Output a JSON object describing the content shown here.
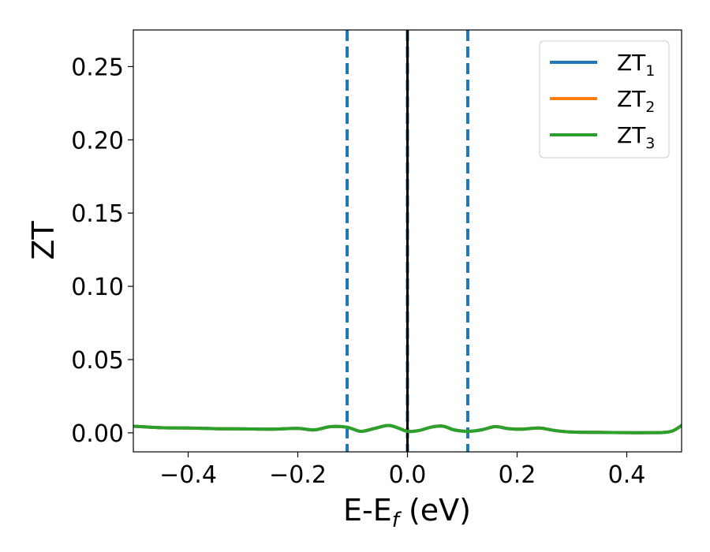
{
  "chart_data": {
    "type": "line",
    "title": "",
    "xlabel": {
      "main": "E-E",
      "sub": "f",
      "suffix": " (eV)"
    },
    "ylabel": "ZT",
    "xlim": [
      -0.5,
      0.5
    ],
    "ylim": [
      -0.013,
      0.275
    ],
    "xticks": [
      -0.4,
      -0.2,
      0.0,
      0.2,
      0.4
    ],
    "xtick_labels": [
      "−0.4",
      "−0.2",
      "0.0",
      "0.2",
      "0.4"
    ],
    "yticks": [
      0.0,
      0.05,
      0.1,
      0.15,
      0.2,
      0.25
    ],
    "ytick_labels": [
      "0.00",
      "0.05",
      "0.10",
      "0.15",
      "0.20",
      "0.25"
    ],
    "grid": false,
    "legend_position": "top-right",
    "series": [
      {
        "name": {
          "main": "ZT",
          "sub": "1"
        },
        "color": "#1f77b4",
        "x": [
          -0.5,
          -0.45,
          -0.4,
          -0.35,
          -0.3,
          -0.25,
          -0.2,
          -0.17,
          -0.14,
          -0.11,
          -0.085,
          -0.06,
          -0.035,
          -0.015,
          0.0,
          0.02,
          0.045,
          0.065,
          0.085,
          0.11,
          0.135,
          0.16,
          0.185,
          0.21,
          0.24,
          0.27,
          0.3,
          0.35,
          0.4,
          0.45,
          0.47,
          0.485,
          0.5
        ],
        "y": [
          0.0045,
          0.0035,
          0.0033,
          0.0028,
          0.0027,
          0.0025,
          0.003,
          0.002,
          0.0042,
          0.0038,
          0.001,
          0.003,
          0.005,
          0.003,
          0.001,
          0.0015,
          0.004,
          0.0045,
          0.002,
          0.001,
          0.002,
          0.0042,
          0.0028,
          0.0025,
          0.0033,
          0.0015,
          0.0005,
          0.0003,
          0.0001,
          0.0001,
          0.0003,
          0.0015,
          0.005
        ]
      },
      {
        "name": {
          "main": "ZT",
          "sub": "2"
        },
        "color": "#ff7f0e",
        "x": [
          -0.5,
          -0.45,
          -0.4,
          -0.35,
          -0.3,
          -0.25,
          -0.2,
          -0.17,
          -0.14,
          -0.11,
          -0.085,
          -0.06,
          -0.035,
          -0.015,
          0.0,
          0.02,
          0.045,
          0.065,
          0.085,
          0.11,
          0.135,
          0.16,
          0.185,
          0.21,
          0.24,
          0.27,
          0.3,
          0.35,
          0.4,
          0.45,
          0.47,
          0.485,
          0.5
        ],
        "y": [
          0.0045,
          0.0035,
          0.0033,
          0.0028,
          0.0027,
          0.0025,
          0.003,
          0.002,
          0.0042,
          0.0038,
          0.001,
          0.003,
          0.005,
          0.003,
          0.001,
          0.0015,
          0.004,
          0.0045,
          0.002,
          0.001,
          0.002,
          0.0042,
          0.0028,
          0.0025,
          0.0033,
          0.0015,
          0.0005,
          0.0003,
          0.0001,
          0.0001,
          0.0003,
          0.0015,
          0.005
        ]
      },
      {
        "name": {
          "main": "ZT",
          "sub": "3"
        },
        "color": "#2ca02c",
        "x": [
          -0.5,
          -0.45,
          -0.4,
          -0.35,
          -0.3,
          -0.25,
          -0.2,
          -0.17,
          -0.14,
          -0.11,
          -0.085,
          -0.06,
          -0.035,
          -0.015,
          0.0,
          0.02,
          0.045,
          0.065,
          0.085,
          0.11,
          0.135,
          0.16,
          0.185,
          0.21,
          0.24,
          0.27,
          0.3,
          0.35,
          0.4,
          0.45,
          0.47,
          0.485,
          0.5
        ],
        "y": [
          0.0045,
          0.0035,
          0.0033,
          0.0028,
          0.0027,
          0.0025,
          0.003,
          0.002,
          0.0042,
          0.0038,
          0.001,
          0.003,
          0.005,
          0.003,
          0.001,
          0.0015,
          0.004,
          0.0045,
          0.002,
          0.001,
          0.002,
          0.0042,
          0.0028,
          0.0025,
          0.0033,
          0.0015,
          0.0005,
          0.0003,
          0.0001,
          0.0001,
          0.0003,
          0.0015,
          0.005
        ]
      }
    ],
    "vlines": [
      {
        "x": -0.11,
        "style": "dashed",
        "color": "#1f77b4"
      },
      {
        "x": 0.0,
        "style": "dashed",
        "color": "#1f77b4"
      },
      {
        "x": 0.11,
        "style": "dashed",
        "color": "#1f77b4"
      },
      {
        "x": 0.0,
        "style": "solid",
        "color": "#000000"
      }
    ]
  }
}
